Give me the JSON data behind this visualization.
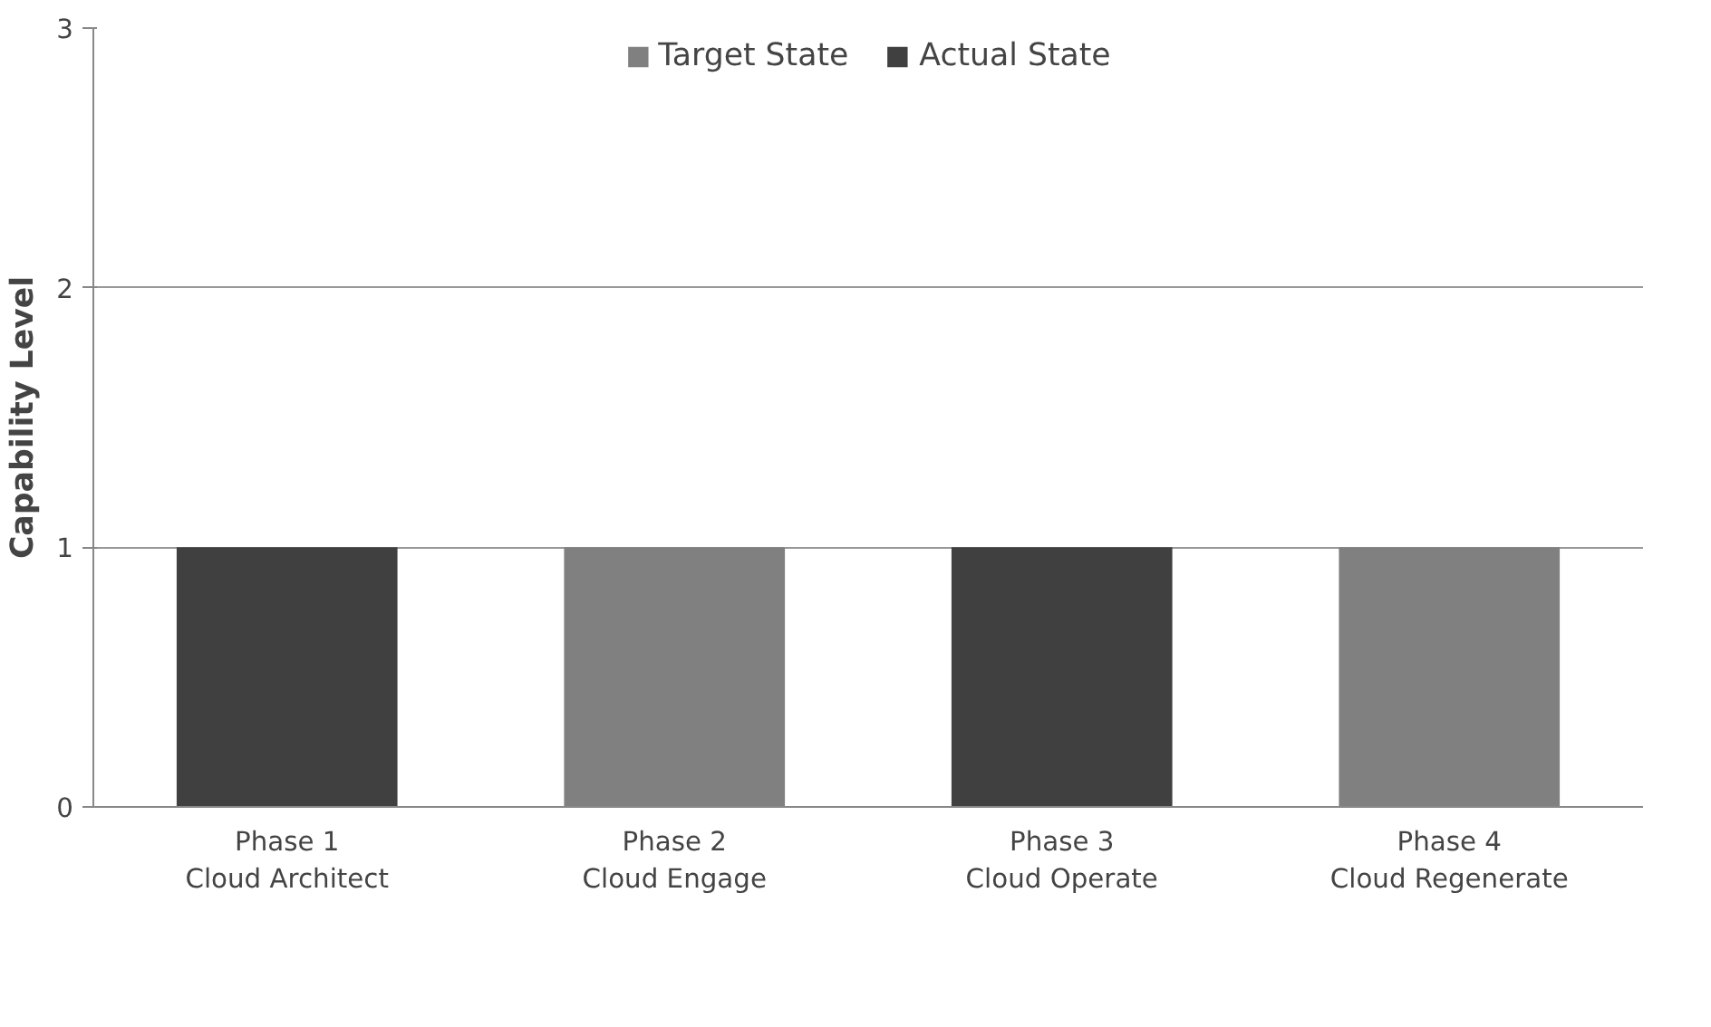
{
  "chart_data": {
    "type": "bar",
    "ylabel": "Capability Level",
    "categories": [
      "Phase 1\nCloud Architect",
      "Phase 2\nCloud Engage",
      "Phase 3\nCloud Operate",
      "Phase 4\nCloud Regenerate"
    ],
    "series": [
      {
        "name": "Target State",
        "color": "#808080",
        "values": [
          null,
          1,
          null,
          1
        ]
      },
      {
        "name": "Actual State",
        "color": "#404040",
        "values": [
          1,
          null,
          1,
          null
        ]
      }
    ],
    "stacked": true,
    "ylim": [
      0,
      3
    ],
    "yticks": [
      0,
      1,
      2,
      3
    ],
    "grid": "y",
    "legend": "top"
  }
}
